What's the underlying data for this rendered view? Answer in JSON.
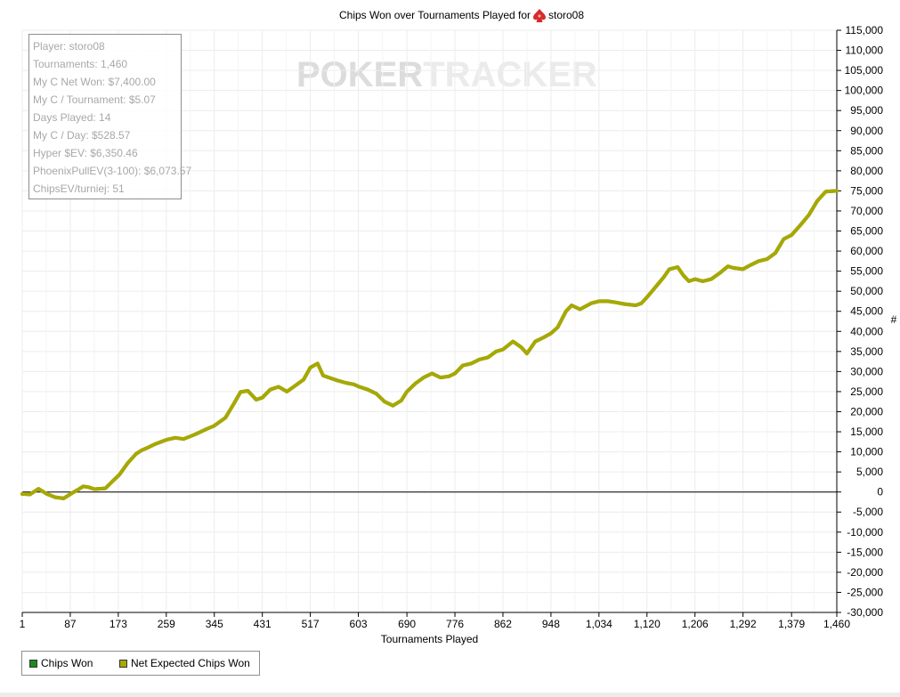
{
  "chart_data": {
    "type": "line",
    "title": "Chips Won over Tournaments Played for",
    "player_icon": "pokertracker-spade-icon",
    "title_player": "storo08",
    "xlabel": "Tournaments Played",
    "ylabel": "#",
    "xlim": [
      1,
      1460
    ],
    "ylim": [
      -30000,
      115000
    ],
    "x_ticks": [
      "1",
      "87",
      "173",
      "259",
      "345",
      "431",
      "517",
      "603",
      "690",
      "776",
      "862",
      "948",
      "1,034",
      "1,120",
      "1,206",
      "1,292",
      "1,379",
      "1,460"
    ],
    "y_ticks": [
      "115,000",
      "110,000",
      "105,000",
      "100,000",
      "95,000",
      "90,000",
      "85,000",
      "80,000",
      "75,000",
      "70,000",
      "65,000",
      "60,000",
      "55,000",
      "50,000",
      "45,000",
      "40,000",
      "35,000",
      "30,000",
      "25,000",
      "20,000",
      "15,000",
      "10,000",
      "5,000",
      "0",
      "-5,000",
      "-10,000",
      "-15,000",
      "-20,000",
      "-25,000",
      "-30,000"
    ],
    "grid": true,
    "legend_position": "bottom-left",
    "series": [
      {
        "name": "Chips Won",
        "color": "#1e8a1e",
        "x": [
          1,
          15,
          30,
          45,
          60,
          75,
          90,
          100,
          110,
          120,
          130,
          150,
          165,
          175,
          190,
          205,
          215,
          225,
          240,
          259,
          275,
          290,
          310,
          330,
          345,
          365,
          380,
          392,
          405,
          420,
          431,
          445,
          460,
          475,
          490,
          505,
          517,
          530,
          540,
          550,
          565,
          580,
          595,
          603,
          620,
          635,
          650,
          665,
          680,
          690,
          705,
          720,
          735,
          750,
          765,
          776,
          790,
          805,
          820,
          835,
          850,
          862,
          880,
          895,
          905,
          920,
          935,
          948,
          960,
          975,
          985,
          1000,
          1020,
          1034,
          1050,
          1065,
          1080,
          1100,
          1110,
          1120,
          1135,
          1150,
          1160,
          1175,
          1185,
          1195,
          1206,
          1220,
          1235,
          1250,
          1265,
          1275,
          1292,
          1305,
          1320,
          1335,
          1350,
          1365,
          1379,
          1395,
          1410,
          1425,
          1440,
          1460
        ],
        "values": [
          -500,
          -600,
          800,
          -500,
          -1300,
          -1600,
          -300,
          500,
          1400,
          1200,
          700,
          900,
          3000,
          4300,
          7200,
          9500,
          10400,
          11000,
          12000,
          13000,
          13500,
          13200,
          14300,
          15600,
          16500,
          18500,
          22000,
          24900,
          25200,
          23000,
          23500,
          25500,
          26200,
          25000,
          26500,
          28000,
          31000,
          32000,
          29000,
          28500,
          27800,
          27200,
          26800,
          26300,
          25500,
          24500,
          22500,
          21500,
          22800,
          25000,
          27000,
          28500,
          29500,
          28500,
          28800,
          29500,
          31500,
          32000,
          33000,
          33500,
          35000,
          35500,
          37500,
          36000,
          34500,
          37500,
          38500,
          39500,
          41000,
          45000,
          46500,
          45500,
          47000,
          47500,
          47500,
          47200,
          46800,
          46500,
          47000,
          48500,
          51000,
          53500,
          55500,
          56000,
          54000,
          52500,
          53000,
          52500,
          53000,
          54500,
          56200,
          55800,
          55500,
          56500,
          57500,
          58000,
          59500,
          63000,
          64000,
          66500,
          69000,
          72500,
          74800,
          75000
        ]
      },
      {
        "name": "Net Expected Chips Won",
        "color": "#a8a800",
        "x": [
          1,
          15,
          30,
          45,
          60,
          75,
          90,
          100,
          110,
          120,
          130,
          150,
          165,
          175,
          190,
          205,
          215,
          225,
          240,
          259,
          275,
          290,
          310,
          330,
          345,
          365,
          380,
          392,
          405,
          420,
          431,
          445,
          460,
          475,
          490,
          505,
          517,
          530,
          540,
          550,
          565,
          580,
          595,
          603,
          620,
          635,
          650,
          665,
          680,
          690,
          705,
          720,
          735,
          750,
          765,
          776,
          790,
          805,
          820,
          835,
          850,
          862,
          880,
          895,
          905,
          920,
          935,
          948,
          960,
          975,
          985,
          1000,
          1020,
          1034,
          1050,
          1065,
          1080,
          1100,
          1110,
          1120,
          1135,
          1150,
          1160,
          1175,
          1185,
          1195,
          1206,
          1220,
          1235,
          1250,
          1265,
          1275,
          1292,
          1305,
          1320,
          1335,
          1350,
          1365,
          1379,
          1395,
          1410,
          1425,
          1440,
          1460
        ],
        "values": [
          -500,
          -600,
          800,
          -500,
          -1300,
          -1600,
          -300,
          500,
          1400,
          1200,
          700,
          900,
          3000,
          4300,
          7200,
          9500,
          10400,
          11000,
          12000,
          13000,
          13500,
          13200,
          14300,
          15600,
          16500,
          18500,
          22000,
          24900,
          25200,
          23000,
          23500,
          25500,
          26200,
          25000,
          26500,
          28000,
          31000,
          32000,
          29000,
          28500,
          27800,
          27200,
          26800,
          26300,
          25500,
          24500,
          22500,
          21500,
          22800,
          25000,
          27000,
          28500,
          29500,
          28500,
          28800,
          29500,
          31500,
          32000,
          33000,
          33500,
          35000,
          35500,
          37500,
          36000,
          34500,
          37500,
          38500,
          39500,
          41000,
          45000,
          46500,
          45500,
          47000,
          47500,
          47500,
          47200,
          46800,
          46500,
          47000,
          48500,
          51000,
          53500,
          55500,
          56000,
          54000,
          52500,
          53000,
          52500,
          53000,
          54500,
          56200,
          55800,
          55500,
          56500,
          57500,
          58000,
          59500,
          63000,
          64000,
          66500,
          69000,
          72500,
          74800,
          75000
        ]
      }
    ]
  },
  "watermark": {
    "text": "POKERTRACKER",
    "color_dark": "#dcdcdc",
    "color_light": "#ebebeb"
  },
  "info_box": {
    "lines": [
      "Player: storo08",
      "Tournaments: 1,460",
      "My C Net Won: $7,400.00",
      "My C / Tournament: $5.07",
      "Days Played: 14",
      "My C / Day: $528.57",
      "Hyper $EV: $6,350.46",
      "PhoenixPullEV(3-100): $6,073.57",
      "ChipsEV/turniej: 51"
    ]
  },
  "legend": {
    "items": [
      {
        "label": "Chips Won",
        "color": "#1e8a1e"
      },
      {
        "label": "Net Expected Chips Won",
        "color": "#a8a800"
      }
    ]
  },
  "colors": {
    "grid": "#ececec",
    "axis": "#000000",
    "zero_line": "#000000"
  }
}
